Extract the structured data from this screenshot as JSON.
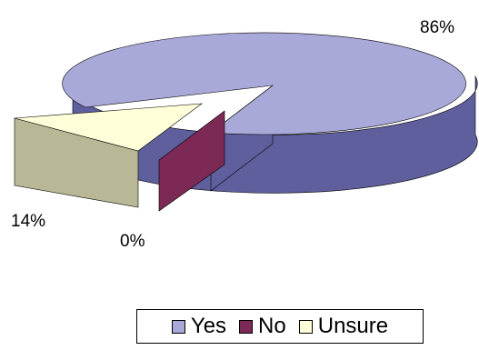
{
  "chart_data": {
    "type": "pie",
    "title": "",
    "slices": [
      {
        "name": "Yes",
        "value": 86,
        "label": "86%",
        "color": "#a9a9d9",
        "side_color": "#5f5f9e"
      },
      {
        "name": "No",
        "value": 0,
        "label": "0%",
        "color": "#7c2a55",
        "side_color": "#7c2a55"
      },
      {
        "name": "Unsure",
        "value": 14,
        "label": "14%",
        "color": "#fefed8",
        "side_color": "#b8b896"
      }
    ],
    "style": "3d-exploded",
    "legend": {
      "position": "bottom-right",
      "entries": [
        "Yes",
        "No",
        "Unsure"
      ]
    }
  }
}
